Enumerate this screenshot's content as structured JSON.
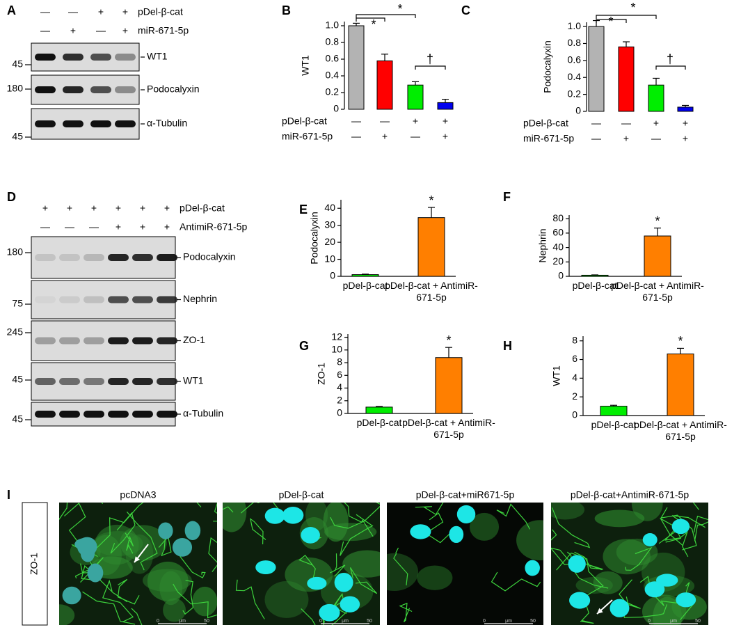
{
  "panel_labels": [
    "A",
    "B",
    "C",
    "D",
    "E",
    "F",
    "G",
    "H",
    "I"
  ],
  "blot_a": {
    "conditions": [
      {
        "label": "pDel-β-cat",
        "signs": [
          "—",
          "—",
          "+",
          "+"
        ]
      },
      {
        "label": "miR-671-5p",
        "signs": [
          "—",
          "+",
          "—",
          "+"
        ]
      }
    ],
    "bands": [
      "WT1",
      "Podocalyxin",
      "α-Tubulin"
    ],
    "markers": [
      45,
      180,
      45
    ]
  },
  "blot_d": {
    "conditions": [
      {
        "label": "pDel-β-cat",
        "signs": [
          "+",
          "+",
          "+",
          "+",
          "+",
          "+"
        ]
      },
      {
        "label": "AntimiR-671-5p",
        "signs": [
          "—",
          "—",
          "—",
          "+",
          "+",
          "+"
        ]
      }
    ],
    "bands": [
      "Podocalyxin",
      "Nephrin",
      "ZO-1",
      "WT1",
      "α-Tubulin"
    ],
    "markers": [
      180,
      75,
      245,
      45,
      45
    ]
  },
  "chart_data": [
    {
      "type": "bar",
      "ylabel": "WT1",
      "values": [
        1.0,
        0.58,
        0.29,
        0.08
      ],
      "errors": [
        0.03,
        0.08,
        0.04,
        0.04
      ],
      "colors": [
        "#b3b3b3",
        "#ff0000",
        "#00ee00",
        "#0000ee"
      ],
      "ylim": [
        0,
        1.05
      ],
      "yticks": [
        0,
        0.2,
        0.4,
        0.6,
        0.8,
        {
          "value": 1,
          "label": "1.0"
        }
      ],
      "category_rows": [
        {
          "label": "pDel-β-cat",
          "signs": [
            "—",
            "—",
            "+",
            "+"
          ]
        },
        {
          "label": "miR-671-5p",
          "signs": [
            "—",
            "+",
            "—",
            "+"
          ]
        }
      ],
      "annotations": [
        "*",
        "*",
        "†"
      ]
    },
    {
      "type": "bar",
      "ylabel": "Podocalyxin",
      "values": [
        1.0,
        0.76,
        0.31,
        0.05
      ],
      "errors": [
        0.07,
        0.06,
        0.08,
        0.02
      ],
      "colors": [
        "#b3b3b3",
        "#ff0000",
        "#00ee00",
        "#0000ee"
      ],
      "ylim": [
        0,
        1.05
      ],
      "yticks": [
        0,
        0.2,
        0.4,
        0.6,
        0.8,
        {
          "value": 1,
          "label": "1.0"
        }
      ],
      "category_rows": [
        {
          "label": "pDel-β-cat",
          "signs": [
            "—",
            "—",
            "+",
            "+"
          ]
        },
        {
          "label": "miR-671-5p",
          "signs": [
            "—",
            "+",
            "—",
            "+"
          ]
        }
      ],
      "annotations": [
        "*",
        "*",
        "†"
      ]
    },
    {
      "type": "bar",
      "ylabel": "Podocalyxin",
      "categories": [
        "pDel-β-cat",
        "pDel-β-cat + AntimiR-671-5p"
      ],
      "values": [
        1,
        34.5
      ],
      "errors": [
        0.3,
        6
      ],
      "colors": [
        "#00ee00",
        "#ff7f00"
      ],
      "ylim": [
        0,
        45
      ],
      "yticks": [
        0,
        10,
        20,
        30,
        40
      ],
      "annotations": [
        "*"
      ]
    },
    {
      "type": "bar",
      "ylabel": "Nephrin",
      "categories": [
        "pDel-β-cat",
        "pDel-β-cat + AntimiR-671-5p"
      ],
      "values": [
        1.5,
        56
      ],
      "errors": [
        0.5,
        11
      ],
      "colors": [
        "#00ee00",
        "#ff7f00"
      ],
      "ylim": [
        0,
        85
      ],
      "yticks": [
        0,
        20,
        40,
        60,
        80
      ],
      "annotations": [
        "*"
      ]
    },
    {
      "type": "bar",
      "ylabel": "ZO-1",
      "categories": [
        "pDel-β-cat",
        "pDel-β-cat + AntimiR-671-5p"
      ],
      "values": [
        1,
        8.8
      ],
      "errors": [
        0.1,
        1.6
      ],
      "colors": [
        "#00ee00",
        "#ff7f00"
      ],
      "ylim": [
        0,
        12.5
      ],
      "yticks": [
        0,
        2,
        4,
        6,
        8,
        10,
        12
      ],
      "annotations": [
        "*"
      ]
    },
    {
      "type": "bar",
      "ylabel": "WT1",
      "categories": [
        "pDel-β-cat",
        "pDel-β-cat + AntimiR-671-5p"
      ],
      "values": [
        1,
        6.6
      ],
      "errors": [
        0.1,
        0.6
      ],
      "colors": [
        "#00ee00",
        "#ff7f00"
      ],
      "ylim": [
        0,
        8.5
      ],
      "yticks": [
        0,
        2,
        4,
        6,
        8
      ],
      "annotations": [
        "*"
      ]
    }
  ],
  "panel_i": {
    "row_label": "ZO-1",
    "titles": [
      "pcDNA3",
      "pDel-β-cat",
      "pDel-β-cat+miR671-5p",
      "pDel-β-cat+AntimiR-671-5p"
    ],
    "scale_bar": [
      "0",
      "μm",
      "50"
    ]
  }
}
